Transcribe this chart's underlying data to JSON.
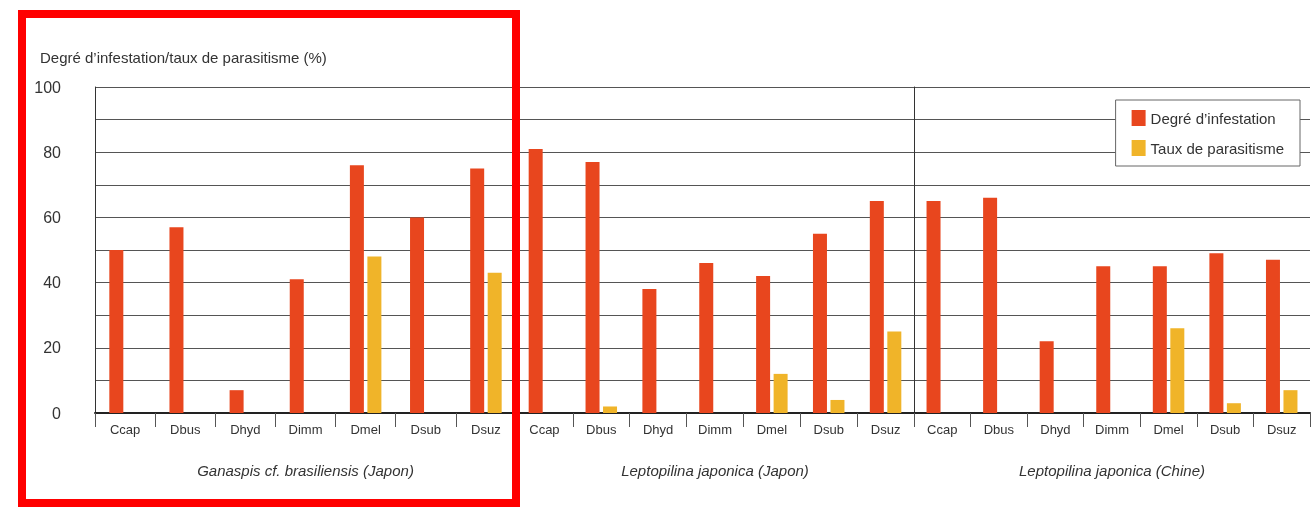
{
  "chart_data": [
    {
      "type": "bar",
      "ylabel": "Degré d’infestation/taux de parasitisme (%)",
      "xlabel": "Ganaspis cf. brasiliensis (Japon)",
      "categories": [
        "Ccap",
        "Dbus",
        "Dhyd",
        "Dimm",
        "Dmel",
        "Dsub",
        "Dsuz"
      ],
      "series": [
        {
          "color": "#e8461e",
          "values": [
            50,
            57,
            7,
            41,
            76,
            60,
            75
          ]
        },
        {
          "color": "#f0b429",
          "values": [
            0,
            0,
            0,
            0,
            48,
            0,
            43
          ]
        }
      ],
      "ylim": [
        0,
        100
      ],
      "yticks": [
        0,
        {
          "value": 10,
          "label": null
        },
        20,
        {
          "value": 30,
          "label": null
        },
        40,
        {
          "value": 50,
          "label": null
        },
        60,
        {
          "value": 70,
          "label": null
        },
        80,
        {
          "value": 90,
          "label": null
        },
        100
      ],
      "grid": "y"
    },
    {
      "type": "bar",
      "xlabel": "Leptopilina japonica (Japon)",
      "categories": [
        "Ccap",
        "Dbus",
        "Dhyd",
        "Dimm",
        "Dmel",
        "Dsub",
        "Dsuz"
      ],
      "series": [
        {
          "color": "#e8461e",
          "values": [
            81,
            77,
            38,
            46,
            42,
            55,
            65
          ]
        },
        {
          "color": "#f0b429",
          "values": [
            0,
            2,
            0,
            0,
            12,
            4,
            25
          ]
        }
      ],
      "ylim": [
        0,
        100
      ],
      "yticks": [
        0,
        {
          "value": 10,
          "label": null
        },
        20,
        {
          "value": 30,
          "label": null
        },
        40,
        {
          "value": 50,
          "label": null
        },
        60,
        {
          "value": 70,
          "label": null
        },
        80,
        {
          "value": 90,
          "label": null
        },
        100
      ],
      "grid": "y",
      "tick_labels": "x"
    },
    {
      "type": "bar",
      "xlabel": "Leptopilina japonica (Chine)",
      "categories": [
        "Ccap",
        "Dbus",
        "Dhyd",
        "Dimm",
        "Dmel",
        "Dsub",
        "Dsuz"
      ],
      "series": [
        {
          "name": "Degré d’infestation",
          "color": "#e8461e",
          "values": [
            65,
            66,
            22,
            45,
            45,
            49,
            47
          ]
        },
        {
          "name": "Taux de parasitisme",
          "color": "#f0b429",
          "values": [
            0,
            0,
            0,
            0,
            26,
            3,
            7
          ]
        }
      ],
      "ylim": [
        0,
        100
      ],
      "yticks": [
        0,
        {
          "value": 10,
          "label": null
        },
        20,
        {
          "value": 30,
          "label": null
        },
        40,
        {
          "value": 50,
          "label": null
        },
        60,
        {
          "value": 70,
          "label": null
        },
        80,
        {
          "value": 90,
          "label": null
        },
        100
      ],
      "grid": "y",
      "tick_labels": "x",
      "legend": "top right"
    }
  ]
}
